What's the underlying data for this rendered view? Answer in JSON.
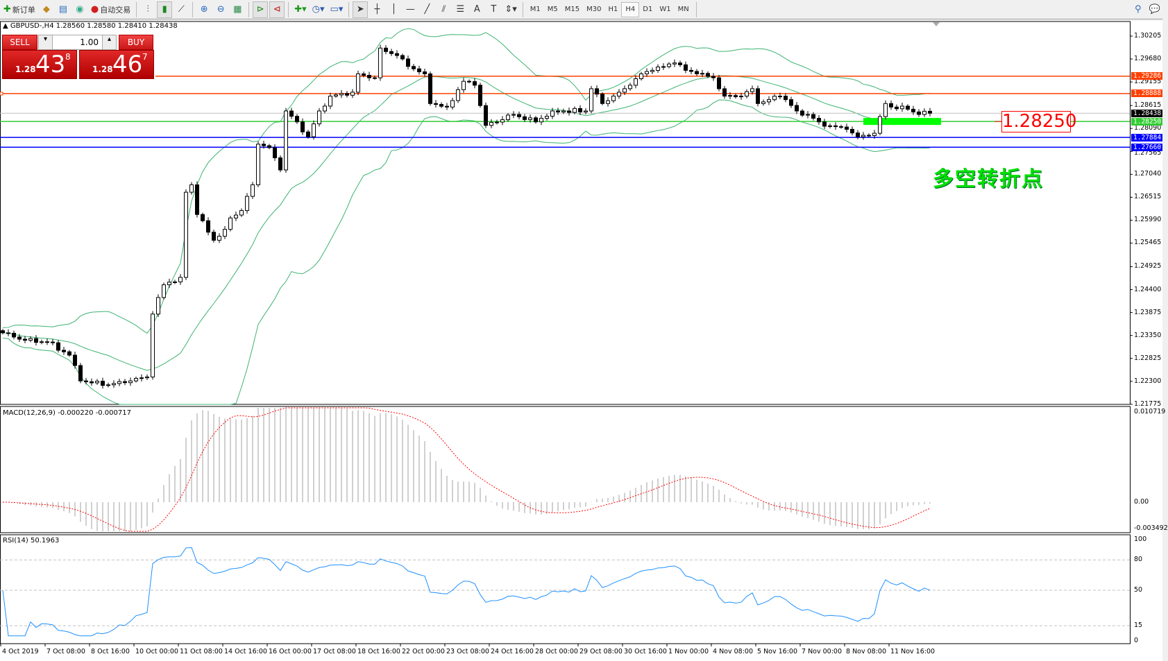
{
  "toolbar": {
    "new_order": "新订单",
    "auto_trading": "自动交易",
    "icons": [
      "new-order-icon",
      "market-watch-icon",
      "data-window-icon",
      "signals-icon",
      "auto-trading-icon",
      "bar-chart-icon",
      "candlestick-icon",
      "line-chart-icon",
      "zoom-in-icon",
      "zoom-out-icon",
      "tile-windows-icon",
      "auto-scroll-icon",
      "chart-shift-icon",
      "indicators-icon",
      "periods-icon",
      "templates-icon",
      "cursor-icon",
      "crosshair-icon",
      "vertical-line-icon",
      "horizontal-line-icon",
      "trendline-icon",
      "equidistant-channel-icon",
      "fibonacci-icon",
      "text-icon",
      "text-label-icon",
      "arrows-icon"
    ],
    "timeframes": [
      "M1",
      "M5",
      "M15",
      "M30",
      "H1",
      "H4",
      "D1",
      "W1",
      "MN"
    ],
    "active_timeframe": "H4"
  },
  "chart": {
    "header": "GBPUSD-,H4  1.28560 1.28580 1.28410 1.28438",
    "trade_panel": {
      "sell": "SELL",
      "buy": "BUY",
      "volume": "1.00",
      "bid_small": "1.28",
      "bid_big": "43",
      "bid_sup": "8",
      "ask_small": "1.28",
      "ask_big": "46",
      "ask_sup": "7"
    },
    "price_ticks": [
      "1.30205",
      "1.29680",
      "1.29155",
      "1.28615",
      "1.28090",
      "1.27565",
      "1.27040",
      "1.26515",
      "1.25990",
      "1.25465",
      "1.24925",
      "1.24400",
      "1.23875",
      "1.23350",
      "1.22825",
      "1.22300",
      "1.21775"
    ],
    "levels": [
      {
        "price": "1.29286",
        "color": "#ff4000"
      },
      {
        "price": "1.28888",
        "color": "#ff4000"
      },
      {
        "price": "1.28438",
        "color": "#000000"
      },
      {
        "price": "1.28250",
        "color": "#32cd32"
      },
      {
        "price": "1.27884",
        "color": "#0000ff"
      },
      {
        "price": "1.27660",
        "color": "#0000ff"
      }
    ],
    "level_label": "1.28250",
    "annotation": "多空转折点",
    "colors": {
      "bands": "#3cb371",
      "macd_hist": "#c0c0c0",
      "macd_signal": "#ff0000",
      "rsi": "#1e90ff",
      "zone": "#00ff00"
    }
  },
  "chart_data": {
    "type": "candlestick",
    "symbol": "GBPUSD-",
    "timeframe": "H4",
    "close_path": [
      [
        0,
        1.2341
      ],
      [
        4,
        1.2324
      ],
      [
        8,
        1.232
      ],
      [
        12,
        1.229
      ],
      [
        14,
        1.2231
      ],
      [
        19,
        1.2222
      ],
      [
        23,
        1.2231
      ],
      [
        26,
        1.224
      ],
      [
        27,
        1.2384
      ],
      [
        29,
        1.2451
      ],
      [
        32,
        1.2468
      ],
      [
        33,
        1.2663
      ],
      [
        34,
        1.268
      ],
      [
        35,
        1.2612
      ],
      [
        38,
        1.2553
      ],
      [
        40,
        1.2578
      ],
      [
        41,
        1.2604
      ],
      [
        43,
        1.2621
      ],
      [
        45,
        1.268
      ],
      [
        46,
        1.2773
      ],
      [
        48,
        1.2765
      ],
      [
        50,
        1.2714
      ],
      [
        51,
        1.2849
      ],
      [
        53,
        1.2824
      ],
      [
        55,
        1.279
      ],
      [
        57,
        1.2849
      ],
      [
        59,
        1.2883
      ],
      [
        63,
        1.2892
      ],
      [
        64,
        1.2934
      ],
      [
        67,
        1.2925
      ],
      [
        68,
        1.2993
      ],
      [
        71,
        1.2976
      ],
      [
        73,
        1.2951
      ],
      [
        76,
        1.2934
      ],
      [
        77,
        1.2866
      ],
      [
        80,
        1.2858
      ],
      [
        83,
        1.2917
      ],
      [
        85,
        1.2908
      ],
      [
        87,
        1.2816
      ],
      [
        92,
        1.2841
      ],
      [
        96,
        1.2824
      ],
      [
        99,
        1.2849
      ],
      [
        105,
        1.2849
      ],
      [
        106,
        1.29
      ],
      [
        108,
        1.2866
      ],
      [
        111,
        1.2892
      ],
      [
        113,
        1.2908
      ],
      [
        115,
        1.2934
      ],
      [
        117,
        1.2942
      ],
      [
        121,
        1.2959
      ],
      [
        123,
        1.2942
      ],
      [
        125,
        1.2934
      ],
      [
        128,
        1.2925
      ],
      [
        130,
        1.2883
      ],
      [
        133,
        1.2883
      ],
      [
        135,
        1.29
      ],
      [
        136,
        1.2866
      ],
      [
        140,
        1.2883
      ],
      [
        141,
        1.2875
      ],
      [
        143,
        1.2849
      ],
      [
        145,
        1.2841
      ],
      [
        147,
        1.2824
      ],
      [
        149,
        1.2815
      ],
      [
        152,
        1.2807
      ],
      [
        154,
        1.279
      ],
      [
        157,
        1.2798
      ],
      [
        159,
        1.2866
      ],
      [
        160,
        1.2858
      ],
      [
        163,
        1.2853
      ],
      [
        165,
        1.2841
      ],
      [
        167,
        1.28438
      ]
    ],
    "ylim": [
      1.21775,
      1.30205
    ],
    "time_labels": [
      "4 Oct 2019",
      "7 Oct 08:00",
      "8 Oct 16:00",
      "10 Oct 00:00",
      "11 Oct 08:00",
      "14 Oct 16:00",
      "16 Oct 00:00",
      "17 Oct 08:00",
      "18 Oct 16:00",
      "22 Oct 00:00",
      "23 Oct 08:00",
      "24 Oct 16:00",
      "28 Oct 00:00",
      "29 Oct 08:00",
      "30 Oct 16:00",
      "1 Nov 00:00",
      "4 Nov 08:00",
      "5 Nov 16:00",
      "7 Nov 00:00",
      "8 Nov 08:00",
      "11 Nov 16:00"
    ],
    "indicators": {
      "bollinger": "20,2",
      "macd": {
        "label": "MACD(12,26,9) -0.000220 -0.000717",
        "ticks": [
          "0.010719",
          "0.00",
          "-0.003492"
        ],
        "ylim": [
          -0.003492,
          0.010719
        ]
      },
      "rsi": {
        "label": "RSI(14) 50.1963",
        "ticks": [
          "100",
          "80",
          "50",
          "15",
          "0"
        ],
        "levels": [
          80,
          50,
          15
        ]
      }
    },
    "zone": {
      "price": 1.2825,
      "from_bar": 155,
      "to_bar": 169
    }
  }
}
